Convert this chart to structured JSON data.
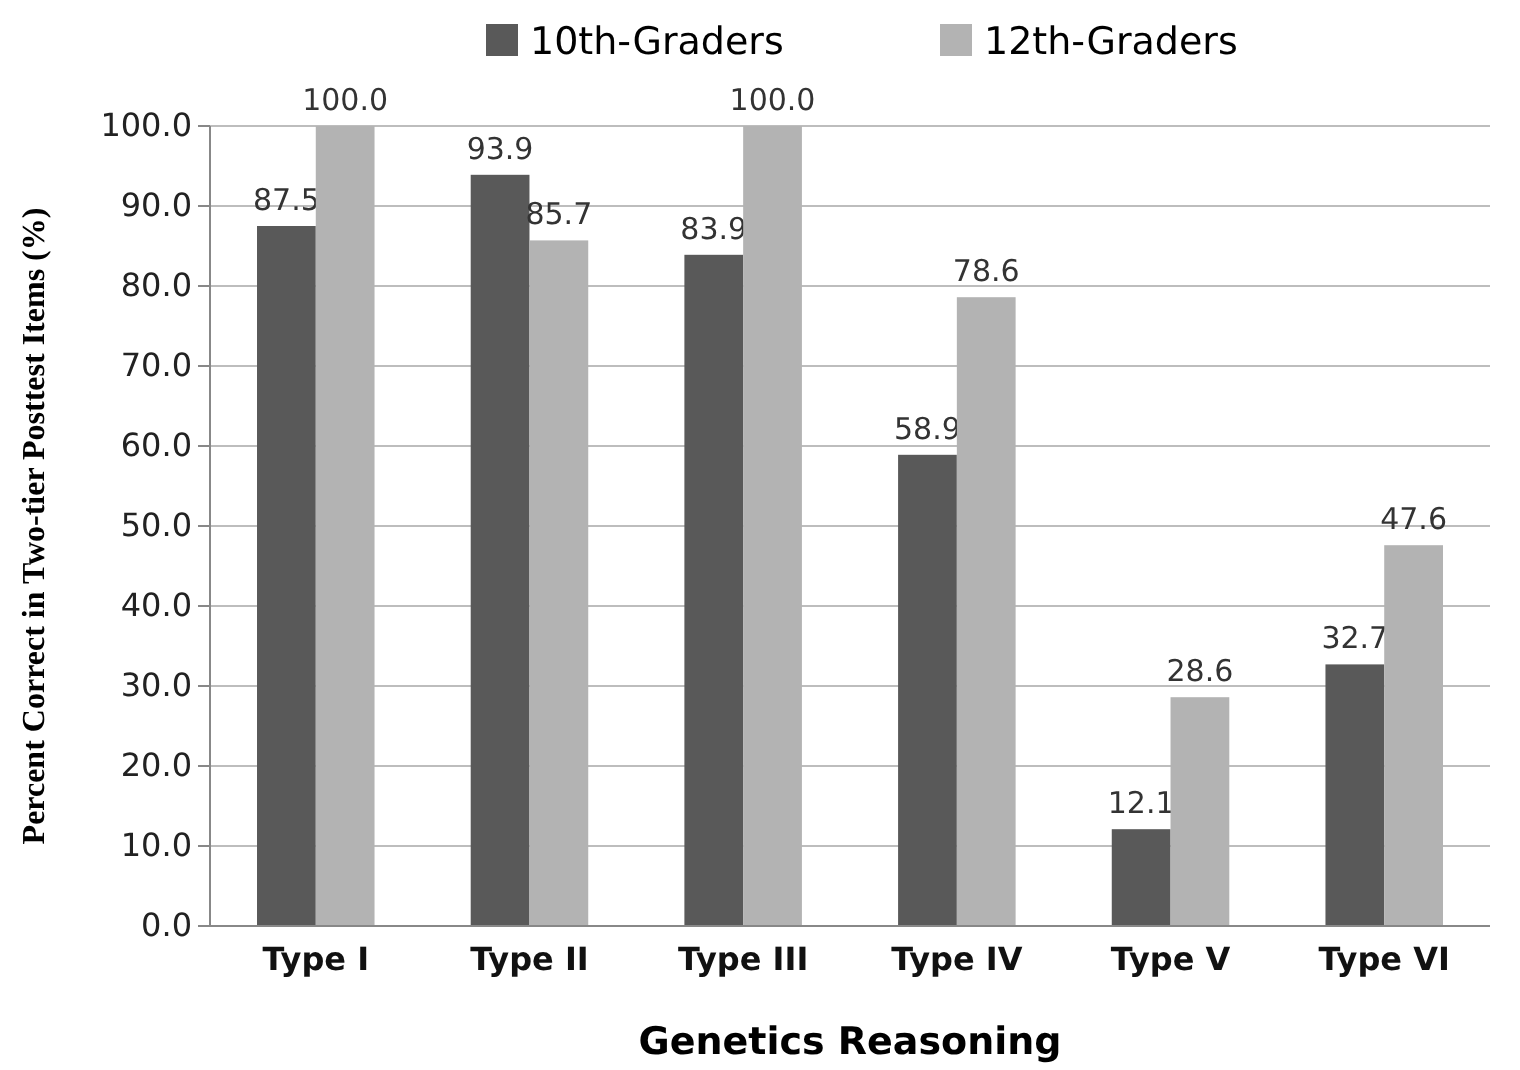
{
  "chart_data": {
    "type": "bar",
    "xlabel": "Genetics Reasoning",
    "ylabel": "Percent Correct in Two-tier Posttest Items  (%)",
    "categories": [
      "Type I",
      "Type II",
      "Type III",
      "Type IV",
      "Type V",
      "Type VI"
    ],
    "series": [
      {
        "name": "10th-Graders",
        "color": "#595959",
        "values": [
          87.5,
          93.9,
          83.9,
          58.9,
          12.1,
          32.7
        ],
        "value_labels": [
          "87.5",
          "93.9",
          "83.9",
          "58.9",
          "12.1",
          "32.7"
        ]
      },
      {
        "name": "12th-Graders",
        "color": "#b3b3b3",
        "values": [
          100,
          85.7,
          100,
          78.6,
          28.6,
          47.6
        ],
        "value_labels": [
          "100.0",
          "85.7",
          "100.0",
          "78.6",
          "28.6",
          "47.6"
        ]
      }
    ],
    "ylim": [
      0,
      100
    ],
    "yticks": [
      {
        "value": 0,
        "label": "0.0"
      },
      {
        "value": 10,
        "label": "10.0"
      },
      {
        "value": 20,
        "label": "20.0"
      },
      {
        "value": 30,
        "label": "30.0"
      },
      {
        "value": 40,
        "label": "40.0"
      },
      {
        "value": 50,
        "label": "50.0"
      },
      {
        "value": 60,
        "label": "60.0"
      },
      {
        "value": 70,
        "label": "70.0"
      },
      {
        "value": 80,
        "label": "80.0"
      },
      {
        "value": 90,
        "label": "90.0"
      },
      {
        "value": 100,
        "label": "100.0"
      }
    ],
    "grid": "y",
    "legend": "top"
  }
}
